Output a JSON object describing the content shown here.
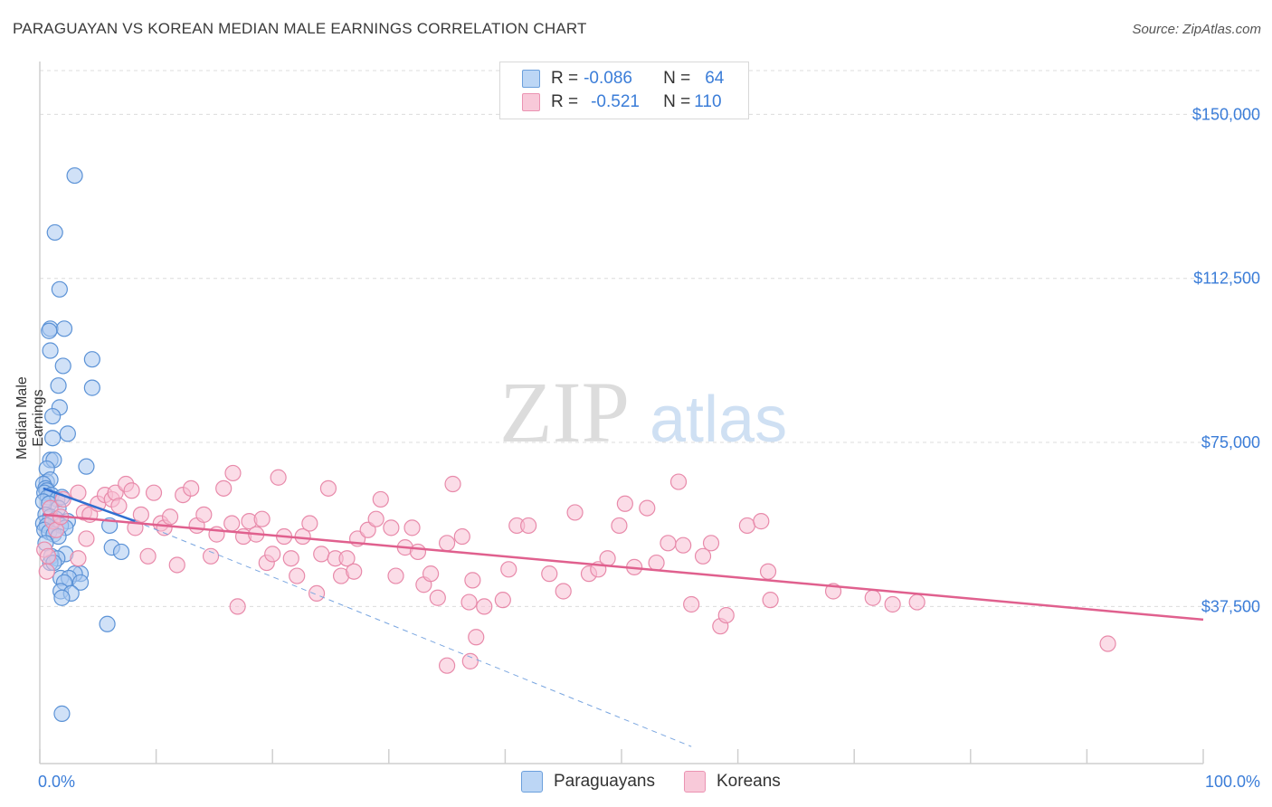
{
  "title": "PARAGUAYAN VS KOREAN MEDIAN MALE EARNINGS CORRELATION CHART",
  "source": "Source: ZipAtlas.com",
  "colors": {
    "paraguayan_fill": "#a9c9f0",
    "paraguayan_stroke": "#5b92d6",
    "paraguayan_line": "#2f6fd0",
    "korean_fill": "#f7bfd3",
    "korean_stroke": "#e88aaa",
    "korean_line": "#e0608e",
    "axis_label": "#3b7dd8",
    "grid": "#dcdcdc",
    "watermark": "#e4e4e4"
  },
  "legend_top": {
    "rows": [
      {
        "r_label": "R = ",
        "r_value": "-0.086",
        "n_label": "N = ",
        "n_value": "64",
        "series": "paraguayan"
      },
      {
        "r_label": "R = ",
        "r_value": "-0.521",
        "n_label": "N = ",
        "n_value": "110",
        "series": "korean"
      }
    ]
  },
  "bottom_legend": {
    "paraguayan": "Paraguayans",
    "korean": "Koreans"
  },
  "watermark": {
    "zip": "ZIP",
    "atlas": "atlas"
  },
  "chart_data": {
    "type": "scatter",
    "title": "PARAGUAYAN VS KOREAN MEDIAN MALE EARNINGS CORRELATION CHART",
    "xlabel": "",
    "ylabel": "Median Male Earnings",
    "xlim": [
      0,
      100
    ],
    "ylim": [
      4500,
      160000
    ],
    "x_tick_labels": [
      "0.0%",
      "100.0%"
    ],
    "y_ticks": [
      37500,
      75000,
      112500,
      150000
    ],
    "y_tick_labels": [
      "$37,500",
      "$75,000",
      "$112,500",
      "$150,000"
    ],
    "grid": true,
    "series": [
      {
        "name": "Paraguayans",
        "color": "paraguayan",
        "points": [
          [
            3.0,
            136000
          ],
          [
            1.3,
            123000
          ],
          [
            1.7,
            110000
          ],
          [
            0.9,
            101000
          ],
          [
            2.1,
            101000
          ],
          [
            0.8,
            100500
          ],
          [
            0.9,
            96000
          ],
          [
            2.0,
            92500
          ],
          [
            4.5,
            94000
          ],
          [
            1.6,
            88000
          ],
          [
            4.5,
            87500
          ],
          [
            1.7,
            83000
          ],
          [
            1.1,
            81000
          ],
          [
            2.4,
            77000
          ],
          [
            1.1,
            76000
          ],
          [
            0.9,
            71000
          ],
          [
            1.2,
            71000
          ],
          [
            0.6,
            69000
          ],
          [
            4.0,
            69500
          ],
          [
            0.6,
            66000
          ],
          [
            0.9,
            66500
          ],
          [
            0.3,
            65500
          ],
          [
            0.5,
            64500
          ],
          [
            0.6,
            64000
          ],
          [
            0.4,
            63500
          ],
          [
            1.0,
            63000
          ],
          [
            0.7,
            62500
          ],
          [
            1.5,
            62000
          ],
          [
            1.9,
            62500
          ],
          [
            0.3,
            61500
          ],
          [
            0.8,
            61000
          ],
          [
            1.6,
            60000
          ],
          [
            0.5,
            58500
          ],
          [
            0.9,
            58000
          ],
          [
            1.4,
            57500
          ],
          [
            2.4,
            57000
          ],
          [
            0.3,
            56500
          ],
          [
            0.6,
            56000
          ],
          [
            1.8,
            56000
          ],
          [
            2.2,
            55500
          ],
          [
            6.0,
            56000
          ],
          [
            0.4,
            55000
          ],
          [
            0.8,
            54500
          ],
          [
            1.2,
            54000
          ],
          [
            1.6,
            53500
          ],
          [
            0.5,
            52000
          ],
          [
            6.2,
            51000
          ],
          [
            7.0,
            50000
          ],
          [
            2.2,
            49500
          ],
          [
            1.0,
            49000
          ],
          [
            1.5,
            48500
          ],
          [
            0.9,
            47500
          ],
          [
            1.2,
            47500
          ],
          [
            3.5,
            45000
          ],
          [
            3.0,
            45000
          ],
          [
            1.8,
            44000
          ],
          [
            2.5,
            44000
          ],
          [
            2.1,
            43000
          ],
          [
            3.5,
            43000
          ],
          [
            1.8,
            41000
          ],
          [
            2.7,
            40500
          ],
          [
            1.9,
            39500
          ],
          [
            5.8,
            33500
          ],
          [
            1.9,
            13000
          ]
        ]
      },
      {
        "name": "Koreans",
        "color": "korean",
        "points": [
          [
            0.4,
            50500
          ],
          [
            0.7,
            49000
          ],
          [
            0.9,
            60000
          ],
          [
            1.1,
            57000
          ],
          [
            1.4,
            55000
          ],
          [
            1.8,
            58000
          ],
          [
            2.0,
            62000
          ],
          [
            3.3,
            63500
          ],
          [
            3.8,
            59000
          ],
          [
            4.0,
            53000
          ],
          [
            4.3,
            58500
          ],
          [
            5.0,
            61000
          ],
          [
            5.6,
            63000
          ],
          [
            6.2,
            62000
          ],
          [
            6.5,
            63500
          ],
          [
            6.8,
            60500
          ],
          [
            7.4,
            65500
          ],
          [
            7.9,
            64000
          ],
          [
            8.2,
            55500
          ],
          [
            8.7,
            58500
          ],
          [
            9.3,
            49000
          ],
          [
            9.8,
            63500
          ],
          [
            10.4,
            56500
          ],
          [
            10.7,
            55500
          ],
          [
            11.2,
            58000
          ],
          [
            11.8,
            47000
          ],
          [
            12.3,
            63000
          ],
          [
            13.0,
            64500
          ],
          [
            13.5,
            56000
          ],
          [
            14.1,
            58500
          ],
          [
            14.7,
            49000
          ],
          [
            15.2,
            54000
          ],
          [
            15.8,
            64500
          ],
          [
            16.5,
            56500
          ],
          [
            16.6,
            68000
          ],
          [
            17.0,
            37500
          ],
          [
            17.5,
            53500
          ],
          [
            18.0,
            57000
          ],
          [
            18.6,
            54000
          ],
          [
            19.1,
            57500
          ],
          [
            19.5,
            47500
          ],
          [
            20.0,
            49500
          ],
          [
            20.5,
            67000
          ],
          [
            21.0,
            53500
          ],
          [
            21.6,
            48500
          ],
          [
            22.1,
            44500
          ],
          [
            22.6,
            53500
          ],
          [
            23.2,
            56500
          ],
          [
            23.8,
            40500
          ],
          [
            24.2,
            49500
          ],
          [
            24.8,
            64500
          ],
          [
            25.4,
            48500
          ],
          [
            25.9,
            44500
          ],
          [
            26.4,
            48500
          ],
          [
            27.0,
            45500
          ],
          [
            27.3,
            53000
          ],
          [
            28.2,
            55000
          ],
          [
            28.9,
            57500
          ],
          [
            29.3,
            62000
          ],
          [
            30.2,
            55500
          ],
          [
            30.6,
            44500
          ],
          [
            31.4,
            51000
          ],
          [
            32.0,
            55500
          ],
          [
            32.5,
            50000
          ],
          [
            33.0,
            42500
          ],
          [
            33.6,
            45000
          ],
          [
            34.2,
            39500
          ],
          [
            35.0,
            52000
          ],
          [
            35.5,
            65500
          ],
          [
            36.3,
            53500
          ],
          [
            36.9,
            38500
          ],
          [
            37.2,
            43500
          ],
          [
            37.5,
            30500
          ],
          [
            38.2,
            37500
          ],
          [
            39.8,
            39000
          ],
          [
            40.3,
            46000
          ],
          [
            41.0,
            56000
          ],
          [
            42.0,
            56000
          ],
          [
            43.8,
            45000
          ],
          [
            45.0,
            41000
          ],
          [
            46.0,
            59000
          ],
          [
            47.2,
            45000
          ],
          [
            48.0,
            46000
          ],
          [
            48.8,
            48500
          ],
          [
            49.8,
            56000
          ],
          [
            50.3,
            61000
          ],
          [
            51.1,
            46500
          ],
          [
            52.2,
            60000
          ],
          [
            53.0,
            47500
          ],
          [
            54.0,
            52000
          ],
          [
            54.9,
            66000
          ],
          [
            55.3,
            51500
          ],
          [
            56.0,
            38000
          ],
          [
            57.0,
            49000
          ],
          [
            57.7,
            52000
          ],
          [
            58.5,
            33000
          ],
          [
            59.0,
            35500
          ],
          [
            60.8,
            56000
          ],
          [
            62.0,
            57000
          ],
          [
            62.6,
            45500
          ],
          [
            62.8,
            39000
          ],
          [
            68.2,
            41000
          ],
          [
            71.6,
            39500
          ],
          [
            73.3,
            38000
          ],
          [
            75.4,
            38500
          ],
          [
            91.8,
            29000
          ],
          [
            3.3,
            48500
          ],
          [
            0.6,
            45500
          ],
          [
            37.0,
            25000
          ],
          [
            35.0,
            24000
          ]
        ]
      }
    ],
    "trend_lines": [
      {
        "series": "Paraguayans",
        "style": "solid",
        "x": [
          0.3,
          8.2
        ],
        "y": [
          64500,
          57000
        ]
      },
      {
        "series": "Paraguayans",
        "style": "dashed",
        "x": [
          8.2,
          56.0
        ],
        "y": [
          57000,
          5500
        ]
      },
      {
        "series": "Koreans",
        "style": "solid",
        "x": [
          0.3,
          100
        ],
        "y": [
          58500,
          34500
        ]
      }
    ]
  }
}
